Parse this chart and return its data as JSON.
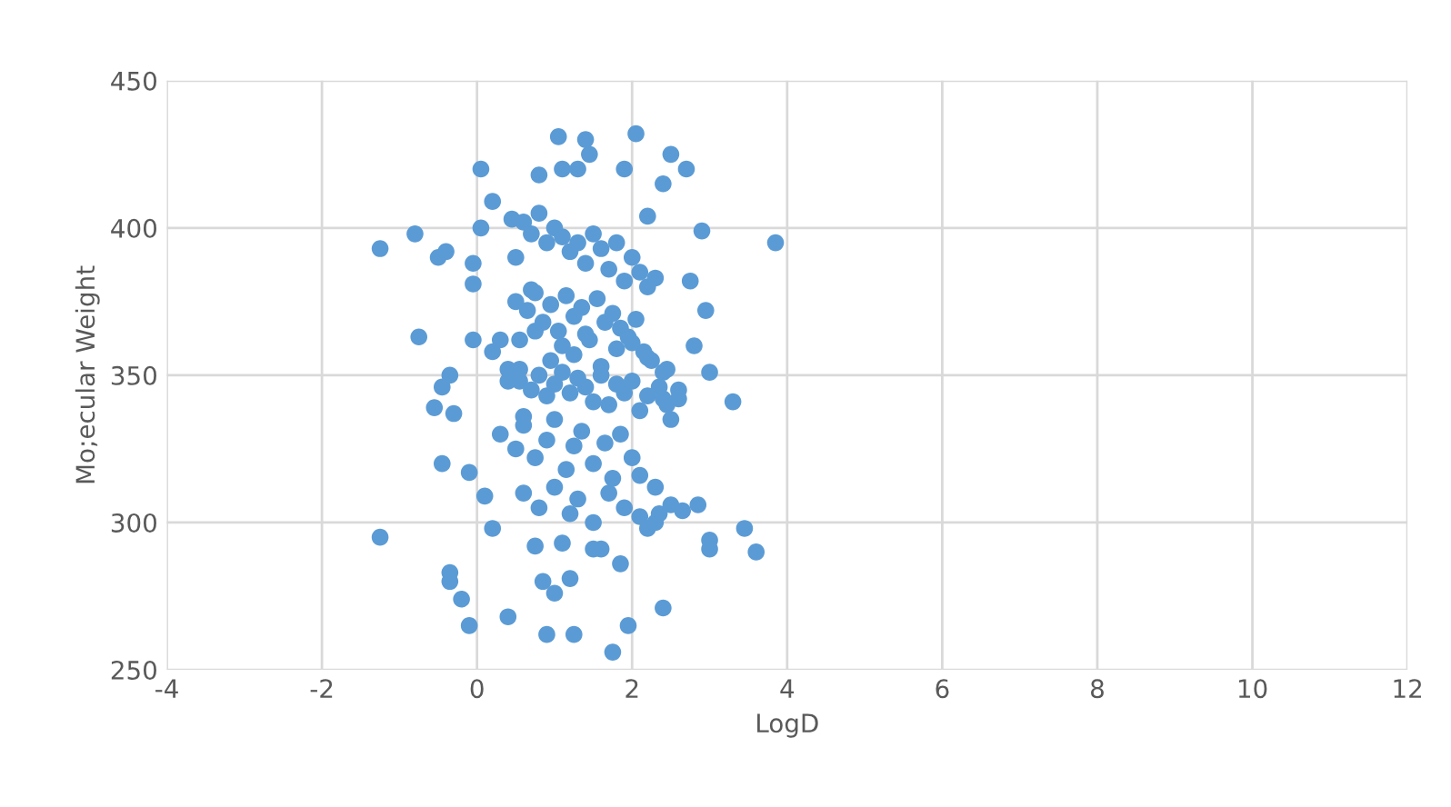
{
  "chart_data": {
    "type": "scatter",
    "xlabel": "LogD",
    "ylabel": "Mo;ecular Weight",
    "color": "#5b9bd5",
    "marker": "circle",
    "grid": true,
    "xlim": [
      -4,
      12
    ],
    "xticks": [
      -4,
      -2,
      0,
      2,
      4,
      6,
      8,
      10,
      12
    ],
    "ylim": [
      250,
      450
    ],
    "yticks": [
      250,
      300,
      350,
      400,
      450
    ],
    "x": [
      -1.25,
      -1.25,
      -0.8,
      -0.75,
      -0.5,
      -0.4,
      -0.55,
      -0.45,
      -0.45,
      -0.35,
      -0.3,
      -0.35,
      -0.35,
      -0.2,
      -0.1,
      -0.1,
      0.05,
      -0.05,
      -0.05,
      -0.05,
      0.05,
      0.1,
      0.2,
      0.2,
      0.3,
      0.4,
      0.45,
      0.5,
      0.55,
      0.6,
      0.7,
      0.75,
      0.8,
      0.85,
      0.9,
      1.0,
      1.05,
      1.1,
      1.1,
      1.2,
      1.25,
      1.3,
      1.4,
      1.45,
      1.5,
      1.6,
      1.75,
      1.85,
      1.9,
      1.95,
      2.05,
      2.2,
      2.4,
      2.4,
      2.5,
      2.7,
      2.75,
      2.9,
      2.95,
      3.0,
      3.0,
      3.0,
      3.3,
      3.45,
      3.6,
      3.85,
      2.65,
      2.85,
      2.5,
      2.3,
      2.8,
      2.6,
      2.5,
      0.6,
      0.7,
      0.8,
      0.9,
      1.0,
      1.1,
      1.2,
      1.3,
      1.4,
      1.5,
      1.6,
      1.7,
      1.8,
      1.9,
      2.0,
      2.1,
      2.2,
      2.3,
      0.5,
      0.65,
      0.75,
      0.85,
      0.95,
      1.05,
      1.15,
      1.25,
      1.35,
      1.45,
      1.55,
      1.65,
      1.75,
      1.85,
      1.95,
      2.05,
      2.15,
      2.25,
      2.35,
      2.45,
      0.4,
      0.55,
      0.7,
      0.8,
      0.9,
      1.0,
      1.1,
      1.2,
      1.3,
      1.4,
      1.5,
      1.6,
      1.7,
      1.8,
      1.9,
      2.0,
      2.1,
      2.2,
      2.4,
      0.3,
      0.5,
      0.6,
      0.75,
      0.9,
      1.0,
      1.15,
      1.25,
      1.35,
      1.5,
      1.65,
      1.75,
      1.85,
      2.0,
      2.1,
      2.3,
      2.45,
      0.6,
      0.8,
      1.0,
      1.2,
      1.3,
      1.5,
      1.7,
      1.9,
      2.1,
      2.2,
      2.35,
      0.2,
      0.4,
      0.55,
      0.75,
      0.95,
      1.1,
      1.25,
      1.4,
      1.6,
      1.8,
      2.0,
      2.2,
      2.4,
      2.6
    ],
    "values": [
      393,
      295,
      398,
      363,
      390,
      392,
      339,
      320,
      346,
      350,
      337,
      283,
      280,
      274,
      265,
      317,
      420,
      388,
      381,
      362,
      400,
      309,
      409,
      298,
      362,
      268,
      403,
      390,
      348,
      336,
      379,
      292,
      418,
      280,
      262,
      276,
      431,
      420,
      293,
      281,
      262,
      420,
      430,
      425,
      291,
      291,
      256,
      286,
      420,
      265,
      432,
      404,
      415,
      271,
      425,
      420,
      382,
      399,
      372,
      351,
      291,
      294,
      341,
      298,
      290,
      395,
      304,
      306,
      306,
      300,
      360,
      342,
      335,
      402,
      398,
      405,
      395,
      400,
      397,
      392,
      395,
      388,
      398,
      393,
      386,
      395,
      382,
      390,
      385,
      380,
      383,
      375,
      372,
      378,
      368,
      374,
      365,
      377,
      370,
      373,
      362,
      376,
      368,
      371,
      366,
      363,
      369,
      358,
      355,
      346,
      352,
      348,
      352,
      345,
      350,
      343,
      347,
      351,
      344,
      349,
      346,
      341,
      350,
      340,
      347,
      344,
      348,
      338,
      343,
      351,
      330,
      325,
      333,
      322,
      328,
      335,
      318,
      326,
      331,
      320,
      327,
      315,
      330,
      322,
      316,
      312,
      340,
      310,
      305,
      312,
      303,
      308,
      300,
      310,
      305,
      302,
      298,
      303,
      358,
      352,
      362,
      365,
      355,
      360,
      357,
      364,
      353,
      359,
      361,
      356,
      342,
      345
    ]
  }
}
